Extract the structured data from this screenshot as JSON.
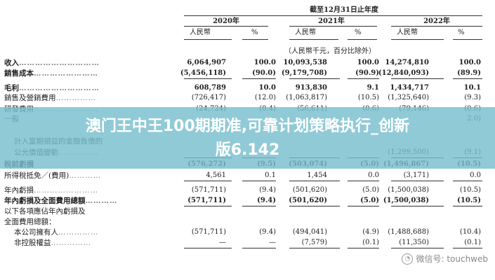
{
  "header": {
    "period": "截至12月31日止年度",
    "years": [
      "2020年",
      "2021年",
      "2022年"
    ],
    "col_rmb": "人民幣",
    "col_pct": "%",
    "unit_note": "（人民幣千元，百分比除外）"
  },
  "rows": [
    {
      "label": "收入",
      "dots": "…………………………",
      "v": [
        "6,064,907",
        "100.0",
        "10,093,538",
        "100.0",
        "14,274,810",
        "100.0"
      ]
    },
    {
      "label": "銷售成本",
      "dots": "……………………",
      "v": [
        "(5,456,118)",
        "(90.0)",
        "(9,179,708)",
        "(90.9)",
        "(12,840,093)",
        "(89.9)"
      ]
    },
    {
      "label": "毛利",
      "dots": "…………………………",
      "v": [
        "608,789",
        "10.0",
        "913,830",
        "9.1",
        "1,434,717",
        "10.1"
      ]
    },
    {
      "label": "銷售及營銷費用",
      "dots": "……………",
      "v": [
        "(726,417)",
        "(12.0)",
        "(1,063,817)",
        "(10.5)",
        "(1,325,640)",
        "(9.3)"
      ]
    },
    {
      "label": "研發費用",
      "dots": "……………………",
      "v": [
        "(24,724)",
        "(0.4)",
        "(56,611)",
        "(0.6)",
        "(79,146)",
        "(0.6)"
      ]
    },
    {
      "label": "一般",
      "dots": "",
      "v": [
        "",
        "",
        "",
        "",
        "",
        "2.0)"
      ]
    },
    {
      "label": "計入當期損益的金融負債的",
      "dots": "",
      "v": [
        "",
        "",
        "",
        "",
        "",
        ""
      ]
    },
    {
      "label": "公允價值變動",
      "dots": "……………",
      "v": [
        "",
        "",
        "",
        "",
        "(1,299,500)",
        "(9.1)"
      ]
    },
    {
      "label": "稅前虧損",
      "dots": "",
      "v": [
        "(576,272)",
        "(9.5)",
        "(503,074)",
        "(5.0)",
        "(1,496,867)",
        "(10.5)"
      ]
    },
    {
      "label": "所得稅抵免／(費用)",
      "dots": "…………",
      "v": [
        "4,561",
        "0.1",
        "1,454",
        "0.0",
        "(3,171)",
        "0.0"
      ]
    },
    {
      "label": "年內虧損",
      "dots": "……………………",
      "v": [
        "(571,711)",
        "(9.4)",
        "(501,620)",
        "(5.0)",
        "(1,500,038)",
        "(10.5)"
      ]
    },
    {
      "label": "年內虧損及全面費用總額",
      "dots": "…………",
      "v": [
        "(571,711)",
        "(9.4)",
        "(501,620)",
        "(5.0)",
        "(1,500,038)",
        "(10.5)"
      ]
    },
    {
      "label": "以下各項應佔年內虧損及",
      "dots": "",
      "v": [
        "",
        "",
        "",
        "",
        "",
        ""
      ]
    },
    {
      "label": "全面費用總額：",
      "dots": "",
      "v": [
        "",
        "",
        "",
        "",
        "",
        ""
      ]
    },
    {
      "label": "本公司擁有人",
      "dots": "……………",
      "v": [
        "(571,711)",
        "(9.4)",
        "(494,041)",
        "(4.9)",
        "(1,488,688)",
        "(10.4)"
      ]
    },
    {
      "label": "非控股權益",
      "dots": "……………",
      "v": [
        "—",
        "—",
        "(7,579)",
        "(0.1)",
        "(11,350)",
        "(0.1)"
      ]
    }
  ],
  "banner": {
    "line1": "澳门王中王100期期准,可靠计划策略执行_创新",
    "line2": "版6.142"
  },
  "watermark": {
    "icon": "wechat-icon",
    "text": "微信号: touchweb"
  }
}
